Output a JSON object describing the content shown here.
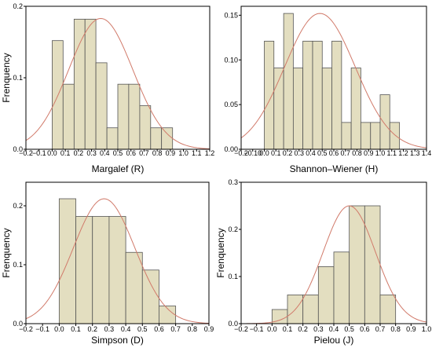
{
  "chart_data": [
    {
      "type": "bar",
      "subtype": "histogram-with-normal-curve",
      "xlabel": "Margalef (R)",
      "ylabel": "Frenquency",
      "xlim": [
        -0.2,
        1.2
      ],
      "ylim": [
        0,
        0.2
      ],
      "xticks": [
        "−0.2",
        "−0.1",
        "0.0",
        "0.1",
        "0.2",
        "0.3",
        "0.4",
        "0.5",
        "0.6",
        "0.7",
        "0.8",
        "0.9",
        "1.0",
        "1.1",
        "1.2"
      ],
      "yticks": [
        "0.0",
        "0.1",
        "0.2"
      ],
      "bins": [
        {
          "from": 0.0,
          "to": 0.083,
          "value": 0.152
        },
        {
          "from": 0.083,
          "to": 0.167,
          "value": 0.091
        },
        {
          "from": 0.167,
          "to": 0.25,
          "value": 0.182
        },
        {
          "from": 0.25,
          "to": 0.333,
          "value": 0.182
        },
        {
          "from": 0.333,
          "to": 0.417,
          "value": 0.121
        },
        {
          "from": 0.417,
          "to": 0.5,
          "value": 0.03
        },
        {
          "from": 0.5,
          "to": 0.583,
          "value": 0.091
        },
        {
          "from": 0.583,
          "to": 0.667,
          "value": 0.091
        },
        {
          "from": 0.667,
          "to": 0.75,
          "value": 0.061
        },
        {
          "from": 0.75,
          "to": 0.833,
          "value": 0.03
        },
        {
          "from": 0.833,
          "to": 0.917,
          "value": 0.03
        }
      ],
      "normal_curve": {
        "mean": 0.37,
        "sd": 0.245,
        "peak": 0.183
      }
    },
    {
      "type": "bar",
      "subtype": "histogram-with-normal-curve",
      "xlabel": "Shannon–Wiener (H)",
      "ylabel": "",
      "xlim": [
        -0.2,
        1.4
      ],
      "ylim": [
        0,
        0.16
      ],
      "xticks": [
        "−0.2",
        "−0.10",
        "0.0",
        "0.1",
        "0.2",
        "0.3",
        "0.4",
        "0.5",
        "0.6",
        "0.7",
        "0.8",
        "0.9",
        "1.0",
        "1.1",
        "1.2",
        "1.3",
        "1.4"
      ],
      "yticks": [
        "0.00",
        "0.05",
        "0.10",
        "0.15"
      ],
      "bins": [
        {
          "from": 0.0,
          "to": 0.083,
          "value": 0.121
        },
        {
          "from": 0.083,
          "to": 0.167,
          "value": 0.091
        },
        {
          "from": 0.167,
          "to": 0.25,
          "value": 0.152
        },
        {
          "from": 0.25,
          "to": 0.333,
          "value": 0.091
        },
        {
          "from": 0.333,
          "to": 0.417,
          "value": 0.121
        },
        {
          "from": 0.417,
          "to": 0.5,
          "value": 0.121
        },
        {
          "from": 0.5,
          "to": 0.583,
          "value": 0.091
        },
        {
          "from": 0.583,
          "to": 0.667,
          "value": 0.121
        },
        {
          "from": 0.667,
          "to": 0.75,
          "value": 0.03
        },
        {
          "from": 0.75,
          "to": 0.833,
          "value": 0.091
        },
        {
          "from": 0.833,
          "to": 0.917,
          "value": 0.03
        },
        {
          "from": 0.917,
          "to": 1.0,
          "value": 0.03
        },
        {
          "from": 1.0,
          "to": 1.083,
          "value": 0.061
        },
        {
          "from": 1.083,
          "to": 1.167,
          "value": 0.03
        }
      ],
      "normal_curve": {
        "mean": 0.48,
        "sd": 0.305,
        "peak": 0.152
      }
    },
    {
      "type": "bar",
      "subtype": "histogram-with-normal-curve",
      "xlabel": "Simpson (D)",
      "ylabel": "Frenquency",
      "xlim": [
        -0.2,
        0.9
      ],
      "ylim": [
        0,
        0.24
      ],
      "xticks": [
        "−0.2",
        "−0.1",
        "0.0",
        "0.1",
        "0.2",
        "0.3",
        "0.4",
        "0.5",
        "0.6",
        "0.7",
        "0.8",
        "0.9"
      ],
      "yticks": [
        "0.0",
        "0.1",
        "0.2"
      ],
      "bins": [
        {
          "from": 0.0,
          "to": 0.1,
          "value": 0.212
        },
        {
          "from": 0.1,
          "to": 0.2,
          "value": 0.182
        },
        {
          "from": 0.2,
          "to": 0.3,
          "value": 0.182
        },
        {
          "from": 0.3,
          "to": 0.4,
          "value": 0.182
        },
        {
          "from": 0.4,
          "to": 0.5,
          "value": 0.121
        },
        {
          "from": 0.5,
          "to": 0.6,
          "value": 0.091
        },
        {
          "from": 0.6,
          "to": 0.7,
          "value": 0.03
        }
      ],
      "normal_curve": {
        "mean": 0.27,
        "sd": 0.185,
        "peak": 0.212
      }
    },
    {
      "type": "bar",
      "subtype": "histogram-with-normal-curve",
      "xlabel": "Pielou (J)",
      "ylabel": "Frenquency",
      "xlim": [
        -0.2,
        1.0
      ],
      "ylim": [
        0,
        0.3
      ],
      "xticks": [
        "−0.2",
        "−0.1",
        "0.0",
        "0.1",
        "0.2",
        "0.3",
        "0.4",
        "0.5",
        "0.6",
        "0.7",
        "0.8",
        "0.9",
        "1.0"
      ],
      "yticks": [
        "0.0",
        "0.1",
        "0.2",
        "0.3"
      ],
      "bins": [
        {
          "from": 0.0,
          "to": 0.1,
          "value": 0.03
        },
        {
          "from": 0.1,
          "to": 0.2,
          "value": 0.061
        },
        {
          "from": 0.2,
          "to": 0.3,
          "value": 0.061
        },
        {
          "from": 0.3,
          "to": 0.4,
          "value": 0.121
        },
        {
          "from": 0.4,
          "to": 0.5,
          "value": 0.152
        },
        {
          "from": 0.5,
          "to": 0.6,
          "value": 0.25
        },
        {
          "from": 0.6,
          "to": 0.7,
          "value": 0.25
        },
        {
          "from": 0.7,
          "to": 0.8,
          "value": 0.061
        }
      ],
      "normal_curve": {
        "mean": 0.5,
        "sd": 0.17,
        "peak": 0.25
      }
    }
  ],
  "colors": {
    "bar_fill": "#e3dec0",
    "bar_stroke": "#555555",
    "curve": "#d17a6a",
    "axis": "#000000"
  }
}
